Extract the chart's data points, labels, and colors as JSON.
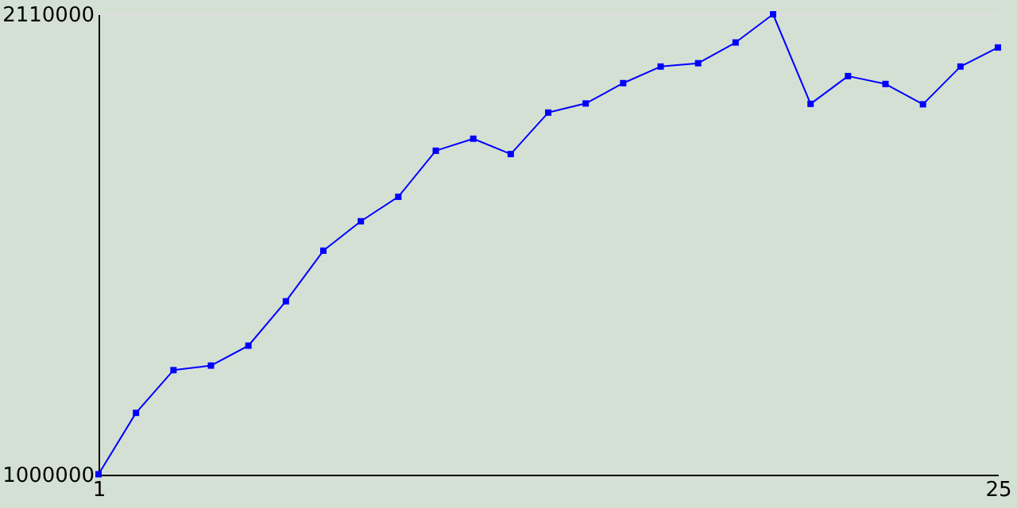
{
  "chart_data": {
    "type": "line",
    "x": [
      1,
      2,
      3,
      4,
      5,
      6,
      7,
      8,
      9,
      10,
      11,
      12,
      13,
      14,
      15,
      16,
      17,
      18,
      19,
      20,
      21,
      22,
      23,
      24,
      25
    ],
    "series": [
      {
        "color": "#0000ff",
        "values": [
          1001000,
          1149000,
          1252000,
          1263000,
          1311000,
          1418000,
          1540000,
          1611000,
          1670000,
          1781000,
          1810000,
          1773000,
          1873000,
          1895000,
          1944000,
          1984000,
          1992000,
          2042000,
          2110000,
          1894000,
          1961000,
          1942000,
          1893000,
          1984000,
          2030000
        ]
      }
    ],
    "xlim": [
      1,
      25
    ],
    "xticks": [
      1,
      25
    ],
    "ylim": [
      1000000,
      2110000
    ],
    "yticks": [
      1000000,
      2110000
    ],
    "marker": "square",
    "line_style": "solid"
  }
}
